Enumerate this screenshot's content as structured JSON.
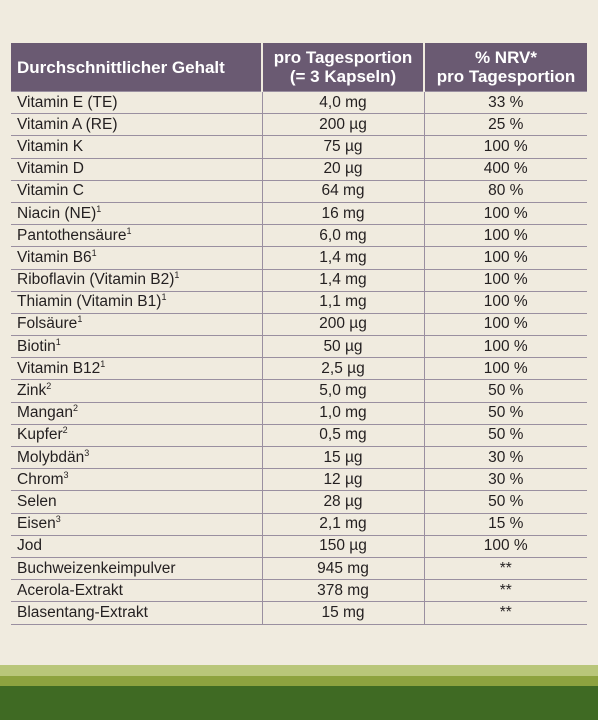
{
  "header": {
    "col1": "Durchschnittlicher Gehalt",
    "col2_line1": "pro Tagesportion",
    "col2_line2": "(= 3 Kapseln)",
    "col3_line1": "% NRV*",
    "col3_line2": "pro Tagesportion"
  },
  "rows": [
    {
      "name": "Vitamin E (TE)",
      "sup": "",
      "amount": "4,0 mg",
      "nrv": "33 %"
    },
    {
      "name": "Vitamin A (RE)",
      "sup": "",
      "amount": "200 µg",
      "nrv": "25 %"
    },
    {
      "name": "Vitamin K",
      "sup": "",
      "amount": "75 µg",
      "nrv": "100 %"
    },
    {
      "name": "Vitamin D",
      "sup": "",
      "amount": "20 µg",
      "nrv": "400 %"
    },
    {
      "name": "Vitamin C",
      "sup": "",
      "amount": "64 mg",
      "nrv": "80 %"
    },
    {
      "name": "Niacin (NE)",
      "sup": "1",
      "amount": "16 mg",
      "nrv": "100 %"
    },
    {
      "name": "Pantothensäure",
      "sup": "1",
      "amount": "6,0 mg",
      "nrv": "100 %"
    },
    {
      "name": "Vitamin B6",
      "sup": "1",
      "amount": "1,4 mg",
      "nrv": "100 %"
    },
    {
      "name": "Riboflavin (Vitamin B2)",
      "sup": "1",
      "amount": "1,4 mg",
      "nrv": "100 %"
    },
    {
      "name": "Thiamin (Vitamin B1)",
      "sup": "1",
      "amount": "1,1 mg",
      "nrv": "100 %"
    },
    {
      "name": "Folsäure",
      "sup": "1",
      "amount": "200 µg",
      "nrv": "100 %"
    },
    {
      "name": "Biotin",
      "sup": "1",
      "amount": "50 µg",
      "nrv": "100 %"
    },
    {
      "name": "Vitamin B12",
      "sup": "1",
      "amount": "2,5 µg",
      "nrv": "100 %"
    },
    {
      "name": "Zink",
      "sup": "2",
      "amount": "5,0 mg",
      "nrv": "50 %"
    },
    {
      "name": "Mangan",
      "sup": "2",
      "amount": "1,0 mg",
      "nrv": "50 %"
    },
    {
      "name": "Kupfer",
      "sup": "2",
      "amount": "0,5 mg",
      "nrv": "50 %"
    },
    {
      "name": "Molybdän",
      "sup": "3",
      "amount": "15 µg",
      "nrv": "30 %"
    },
    {
      "name": "Chrom",
      "sup": "3",
      "amount": "12 µg",
      "nrv": "30 %"
    },
    {
      "name": "Selen",
      "sup": "",
      "amount": "28 µg",
      "nrv": "50 %"
    },
    {
      "name": "Eisen",
      "sup": "3",
      "amount": "2,1 mg",
      "nrv": "15 %"
    },
    {
      "name": "Jod",
      "sup": "",
      "amount": "150 µg",
      "nrv": "100 %"
    },
    {
      "name": "Buchweizenkeimpulver",
      "sup": "",
      "amount": "945 mg",
      "nrv": "**"
    },
    {
      "name": "Acerola-Extrakt",
      "sup": "",
      "amount": "378 mg",
      "nrv": "**"
    },
    {
      "name": "Blasentang-Extrakt",
      "sup": "",
      "amount": "15 mg",
      "nrv": "**"
    }
  ],
  "colors": {
    "header_bg": "#6a5a72",
    "page_bg": "#f0ebdf",
    "stripe_light": "#b9c67a",
    "stripe_mid": "#8da23f",
    "stripe_dark": "#3f6a23"
  }
}
